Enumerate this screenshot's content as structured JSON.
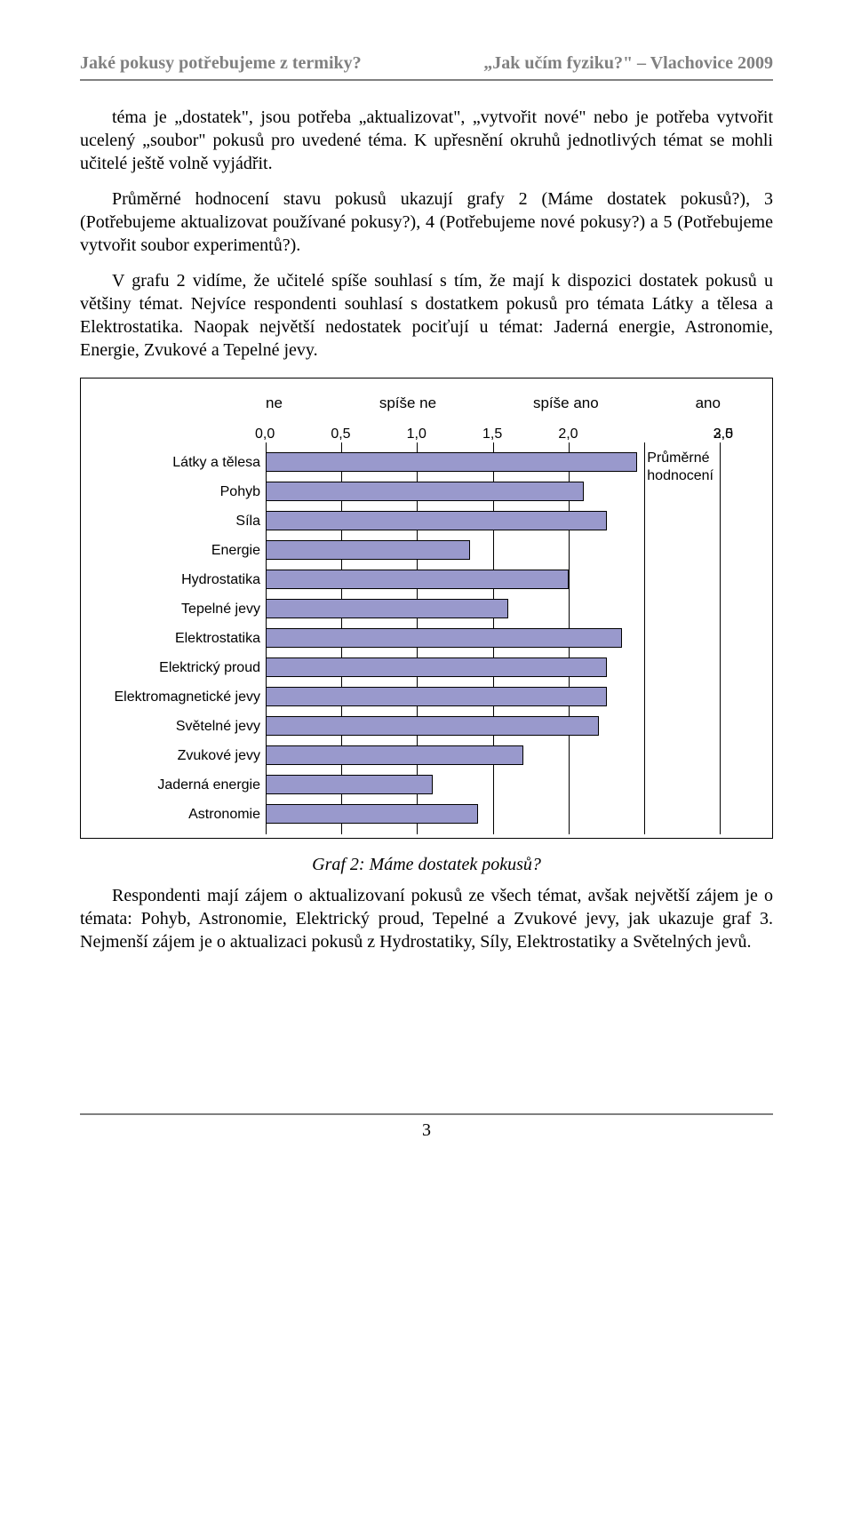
{
  "header": {
    "left": "Jaké pokusy potřebujeme z termiky?",
    "right": "„Jak učím fyziku?\" – Vlachovice 2009"
  },
  "para1": "téma je „dostatek\", jsou potřeba „aktualizovat\", „vytvořit nové\" nebo je potřeba vytvořit ucelený „soubor\" pokusů pro uvedené téma. K upřesnění okruhů jednotlivých témat se mohli učitelé ještě volně vyjádřit.",
  "para2": "Průměrné hodnocení stavu pokusů ukazují grafy 2 (Máme dostatek pokusů?), 3 (Potřebujeme aktualizovat používané pokusy?), 4 (Potřebujeme nové pokusy?) a 5 (Potřebujeme vytvořit soubor experimentů?).",
  "para3": "V grafu 2 vidíme, že učitelé spíše souhlasí s tím, že mají k dispozici dostatek pokusů u většiny témat. Nejvíce respondenti souhlasí s dostatkem pokusů pro témata Látky a tělesa a Elektrostatika. Naopak největší nedostatek pociťují u témat: Jaderná energie, Astronomie, Energie, Zvukové a Tepelné jevy.",
  "chart": {
    "type": "bar",
    "scale_labels": [
      "ne",
      "spíše ne",
      "spíše ano",
      "ano"
    ],
    "ticks": [
      "0,0",
      "0,5",
      "1,0",
      "1,5",
      "2,0",
      "2,5",
      "3,0"
    ],
    "xmin": 0.0,
    "xmax": 3.0,
    "bar_color": "#9999cc",
    "bar_border": "#000000",
    "grid_color": "#000000",
    "background_color": "#ffffff",
    "label_fontsize": 16,
    "legend_label": "Průměrné\nhodnocení",
    "categories": [
      {
        "label": "Látky a tělesa",
        "value": 2.45
      },
      {
        "label": "Pohyb",
        "value": 2.1
      },
      {
        "label": "Síla",
        "value": 2.25
      },
      {
        "label": "Energie",
        "value": 1.35
      },
      {
        "label": "Hydrostatika",
        "value": 2.0
      },
      {
        "label": "Tepelné jevy",
        "value": 1.6
      },
      {
        "label": "Elektrostatika",
        "value": 2.35
      },
      {
        "label": "Elektrický proud",
        "value": 2.25
      },
      {
        "label": "Elektromagnetické jevy",
        "value": 2.25
      },
      {
        "label": "Světelné jevy",
        "value": 2.2
      },
      {
        "label": "Zvukové jevy",
        "value": 1.7
      },
      {
        "label": "Jaderná energie",
        "value": 1.1
      },
      {
        "label": "Astronomie",
        "value": 1.4
      }
    ]
  },
  "caption": "Graf 2: Máme dostatek pokusů?",
  "para4": "Respondenti mají zájem o aktualizovaní pokusů ze všech témat, avšak největší zájem je o témata: Pohyb, Astronomie, Elektrický proud, Tepelné a Zvukové jevy, jak ukazuje graf 3. Nejmenší zájem je o aktualizaci pokusů z Hydrostatiky, Síly, Elektrostatiky a Světelných jevů.",
  "page_number": "3"
}
